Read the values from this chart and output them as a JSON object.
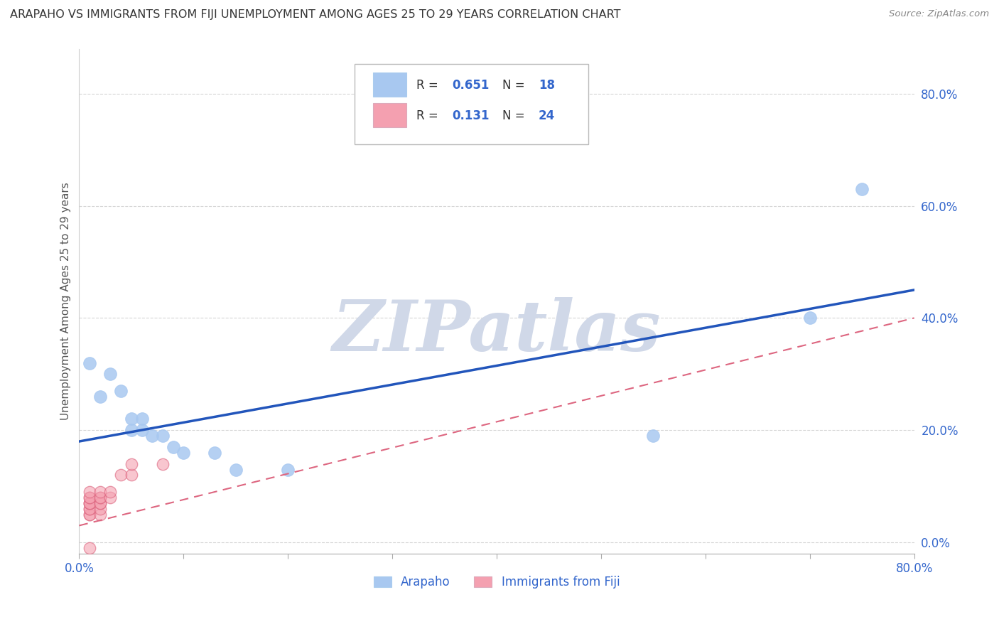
{
  "title": "ARAPAHO VS IMMIGRANTS FROM FIJI UNEMPLOYMENT AMONG AGES 25 TO 29 YEARS CORRELATION CHART",
  "source": "Source: ZipAtlas.com",
  "ylabel": "Unemployment Among Ages 25 to 29 years",
  "xlim": [
    0.0,
    0.8
  ],
  "ylim": [
    -0.02,
    0.88
  ],
  "xticks": [
    0.0,
    0.1,
    0.2,
    0.3,
    0.4,
    0.5,
    0.6,
    0.7,
    0.8
  ],
  "xtick_labels": [
    "0.0%",
    "",
    "",
    "",
    "",
    "",
    "",
    "",
    "80.0%"
  ],
  "ytick_labels": [
    "0.0%",
    "20.0%",
    "40.0%",
    "60.0%",
    "80.0%"
  ],
  "yticks": [
    0.0,
    0.2,
    0.4,
    0.6,
    0.8
  ],
  "arapaho_color": "#A8C8F0",
  "fiji_color": "#F4A0B0",
  "arapaho_line_color": "#2255BB",
  "fiji_line_color": "#DD6680",
  "arapaho_x": [
    0.01,
    0.02,
    0.03,
    0.04,
    0.05,
    0.05,
    0.06,
    0.06,
    0.07,
    0.08,
    0.09,
    0.1,
    0.13,
    0.15,
    0.2,
    0.55,
    0.7,
    0.75
  ],
  "arapaho_y": [
    0.32,
    0.26,
    0.3,
    0.27,
    0.2,
    0.22,
    0.2,
    0.22,
    0.19,
    0.19,
    0.17,
    0.16,
    0.16,
    0.13,
    0.13,
    0.19,
    0.4,
    0.63
  ],
  "fiji_x": [
    0.01,
    0.01,
    0.01,
    0.01,
    0.01,
    0.01,
    0.01,
    0.01,
    0.01,
    0.01,
    0.02,
    0.02,
    0.02,
    0.02,
    0.02,
    0.02,
    0.02,
    0.03,
    0.03,
    0.04,
    0.05,
    0.05,
    0.08,
    0.01
  ],
  "fiji_y": [
    0.05,
    0.05,
    0.06,
    0.06,
    0.07,
    0.07,
    0.07,
    0.08,
    0.08,
    0.09,
    0.05,
    0.06,
    0.07,
    0.07,
    0.08,
    0.08,
    0.09,
    0.08,
    0.09,
    0.12,
    0.12,
    0.14,
    0.14,
    -0.01
  ],
  "watermark_text": "ZIPatlas",
  "watermark_color": "#D0D8E8",
  "background_color": "#FFFFFF",
  "grid_color": "#CCCCCC",
  "title_color": "#333333",
  "axis_label_color": "#555555",
  "tick_color": "#3366CC",
  "legend_label_color": "#3366CC",
  "legend_text_color": "#000000"
}
